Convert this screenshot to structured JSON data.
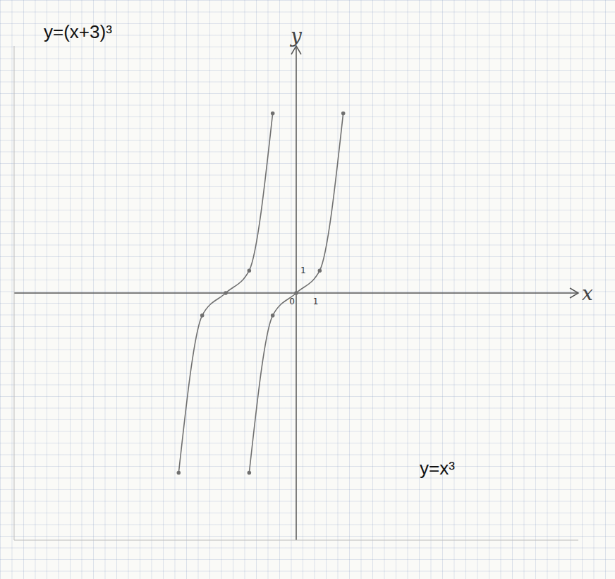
{
  "chart_data": {
    "type": "line",
    "x_label": "x",
    "y_label": "y",
    "xlim": [
      -12,
      12
    ],
    "ylim": [
      -11,
      11
    ],
    "xticks": [
      0,
      1
    ],
    "yticks": [
      1
    ],
    "marker": "dot",
    "series": [
      {
        "name": "y=(x+3)³",
        "color": "#707070",
        "x": [
          -5,
          -4,
          -3,
          -2,
          -1
        ],
        "values": [
          -8,
          -1,
          0,
          1,
          8
        ]
      },
      {
        "name": "y=x³",
        "color": "#707070",
        "x": [
          -2,
          -1,
          0,
          1,
          2
        ],
        "values": [
          -8,
          -1,
          0,
          1,
          8
        ]
      }
    ]
  }
}
